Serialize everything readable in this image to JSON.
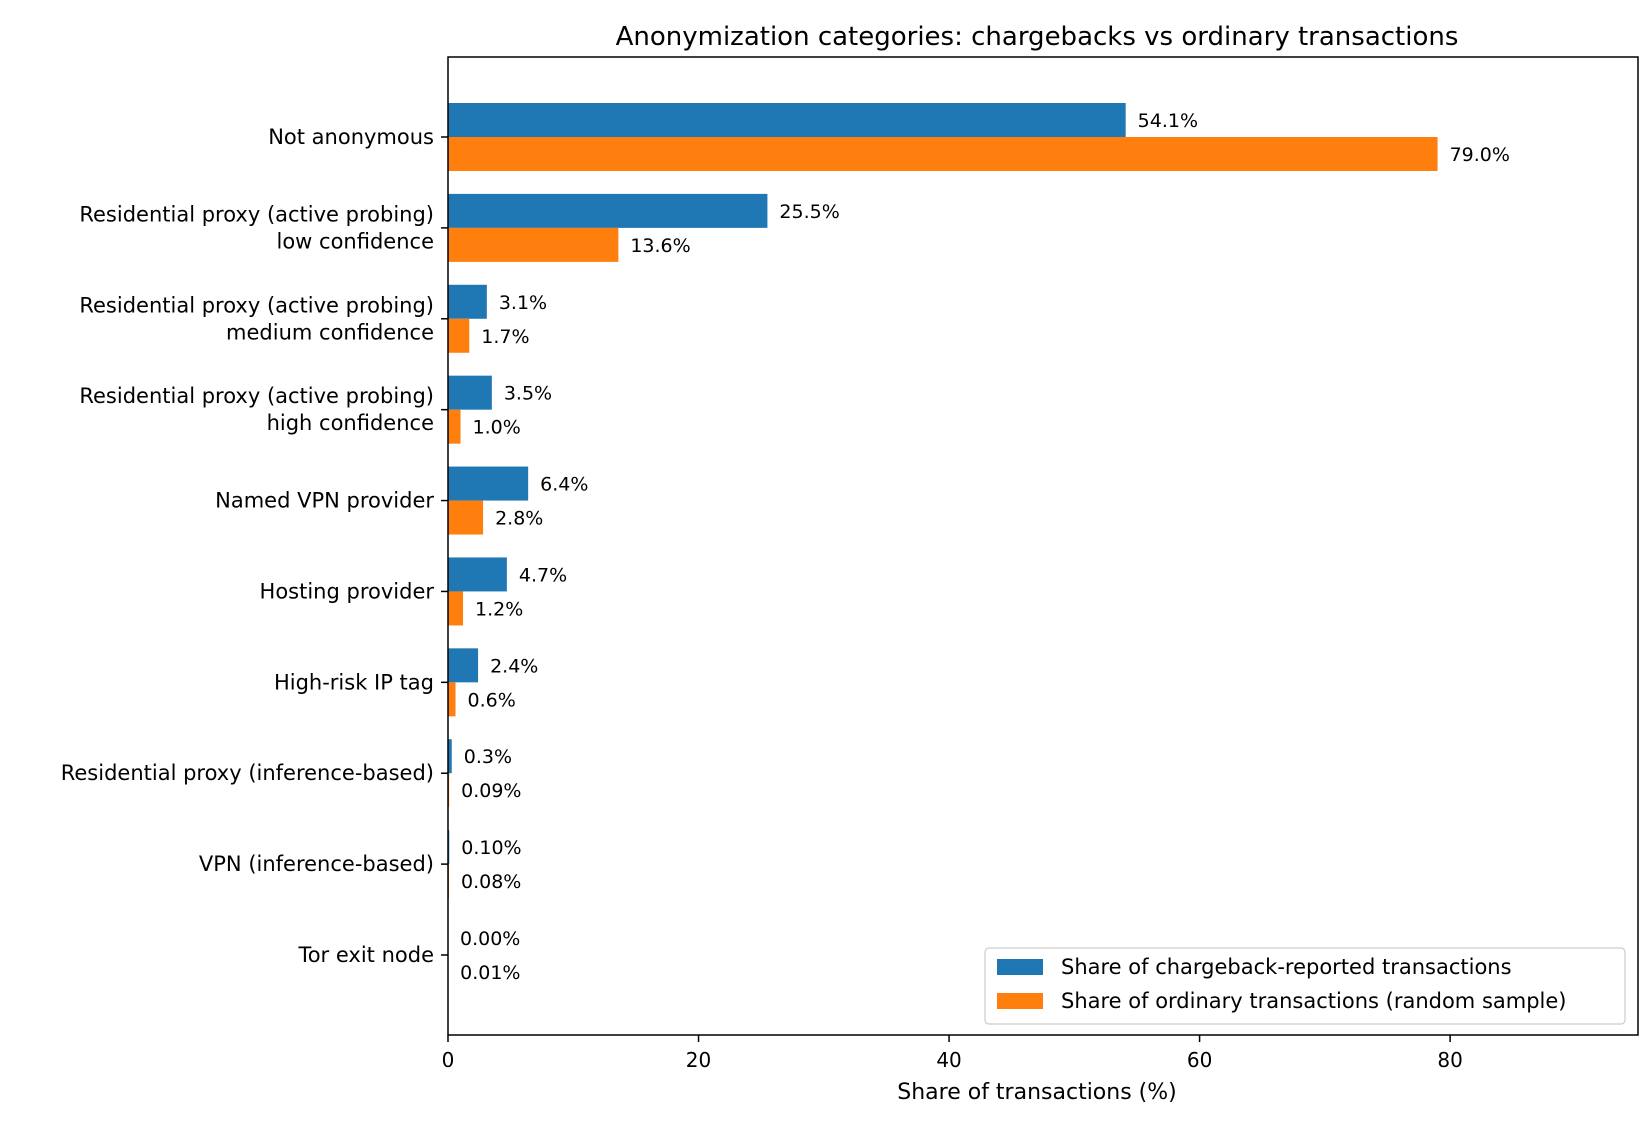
{
  "chart_data": {
    "type": "bar",
    "orientation": "horizontal",
    "title": "Anonymization categories: chargebacks vs ordinary transactions",
    "xlabel": "Share of transactions (%)",
    "ylabel": "",
    "xlim": [
      0,
      95
    ],
    "x_ticks": [
      0,
      20,
      40,
      60,
      80
    ],
    "grid": false,
    "legend_position": "bottom-right",
    "categories": [
      [
        "Not anonymous"
      ],
      [
        "Residential proxy (active probing)",
        "low confidence"
      ],
      [
        "Residential proxy (active probing)",
        "medium confidence"
      ],
      [
        "Residential proxy (active probing)",
        "high confidence"
      ],
      [
        "Named VPN provider"
      ],
      [
        "Hosting provider"
      ],
      [
        "High-risk IP tag"
      ],
      [
        "Residential proxy (inference-based)"
      ],
      [
        "VPN (inference-based)"
      ],
      [
        "Tor exit node"
      ]
    ],
    "series": [
      {
        "name": "Share of chargeback-reported transactions",
        "color": "#1f77b4",
        "values": [
          54.1,
          25.5,
          3.1,
          3.5,
          6.4,
          4.7,
          2.4,
          0.3,
          0.1,
          0.0
        ],
        "labels": [
          "54.1%",
          "25.5%",
          "3.1%",
          "3.5%",
          "6.4%",
          "4.7%",
          "2.4%",
          "0.3%",
          "0.10%",
          "0.00%"
        ]
      },
      {
        "name": "Share of ordinary transactions (random sample)",
        "color": "#ff7f0e",
        "values": [
          79.0,
          13.6,
          1.7,
          1.0,
          2.8,
          1.2,
          0.6,
          0.09,
          0.08,
          0.01
        ],
        "labels": [
          "79.0%",
          "13.6%",
          "1.7%",
          "1.0%",
          "2.8%",
          "1.2%",
          "0.6%",
          "0.09%",
          "0.08%",
          "0.01%"
        ]
      }
    ]
  }
}
